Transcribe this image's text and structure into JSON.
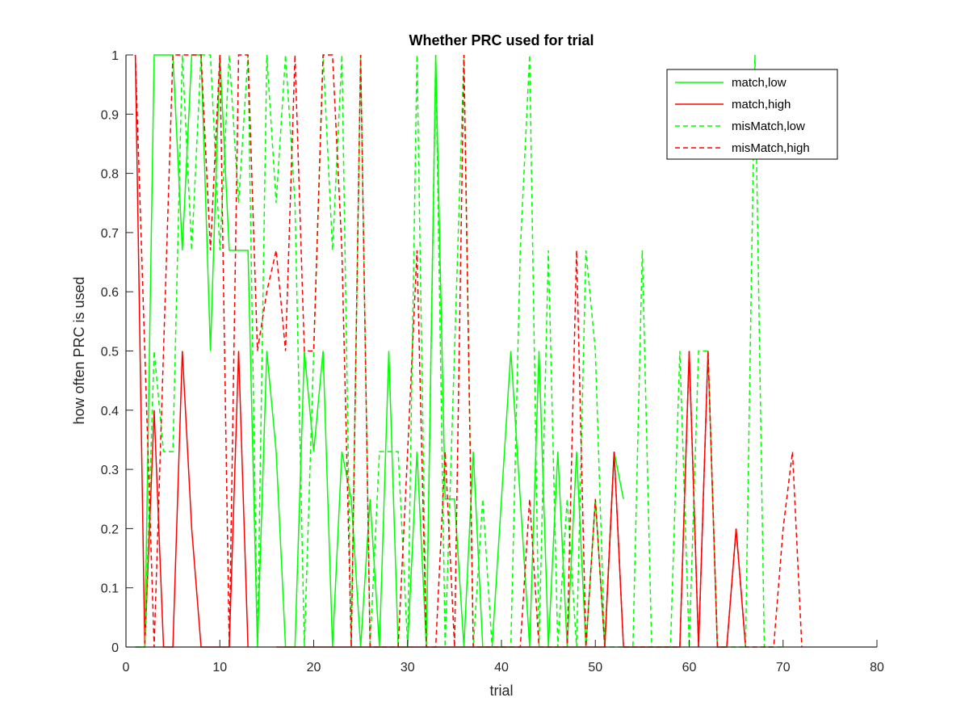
{
  "chart_data": {
    "type": "line",
    "title": "Whether PRC used for trial",
    "xlabel": "trial",
    "ylabel": "how often PRC is used",
    "xlim": [
      0,
      80
    ],
    "ylim": [
      0,
      1
    ],
    "xticks": [
      "0",
      "10",
      "20",
      "30",
      "40",
      "50",
      "60",
      "70",
      "80"
    ],
    "yticks": [
      "0",
      "0.1",
      "0.2",
      "0.3",
      "0.4",
      "0.5",
      "0.6",
      "0.7",
      "0.8",
      "0.9",
      "1"
    ],
    "grid": false,
    "legend_position": "top-right",
    "series": [
      {
        "name": "match,low",
        "color": "#00ff00",
        "style": "solid",
        "x": [
          1,
          2,
          3,
          4,
          5,
          6,
          7,
          8,
          9,
          10,
          11,
          12,
          13,
          14,
          15,
          16,
          17,
          18,
          19,
          20,
          21,
          22,
          23,
          24,
          25,
          26,
          27,
          28,
          29,
          30,
          31,
          32,
          33,
          34,
          35,
          36,
          37,
          38,
          39,
          40,
          41,
          42,
          43,
          44,
          45,
          46,
          47,
          48,
          49,
          50,
          51,
          52,
          53
        ],
        "y": [
          0,
          0,
          1,
          1,
          1,
          0.67,
          1,
          1,
          0.5,
          1,
          0.67,
          0.67,
          0.67,
          0,
          0.5,
          0.33,
          0,
          0,
          0.5,
          0.33,
          0.5,
          0,
          0.33,
          0.25,
          0,
          0.25,
          0,
          0.5,
          0,
          0,
          0.33,
          0,
          1,
          0.25,
          0.25,
          0,
          0.33,
          0,
          0,
          0.25,
          0.5,
          0.25,
          0,
          0.5,
          0,
          0.33,
          0,
          0.33,
          0,
          0.25,
          0,
          0.33,
          0.25
        ]
      },
      {
        "name": "match,high",
        "color": "#ff0000",
        "style": "solid",
        "x": [
          1,
          2,
          3,
          4,
          5,
          6,
          7,
          8,
          9,
          10,
          11,
          12,
          13,
          14,
          15,
          16,
          17,
          18,
          19,
          20,
          21,
          22,
          23,
          24,
          25,
          26,
          27,
          28,
          29,
          30,
          31,
          32,
          33,
          34,
          35,
          36,
          37,
          38,
          39,
          40,
          41,
          42,
          43,
          44,
          45,
          46,
          47,
          48,
          49,
          50,
          51,
          52,
          53,
          54,
          55,
          56,
          57,
          58,
          59,
          60,
          61,
          62,
          63,
          64,
          65,
          66
        ],
        "y": [
          1,
          0,
          0.4,
          0,
          0,
          0.5,
          0.2,
          0,
          0,
          0,
          0,
          0.5,
          0,
          null,
          null,
          0,
          0,
          0,
          0,
          0,
          0,
          0,
          0,
          0,
          0,
          0,
          0,
          0,
          0,
          0,
          0,
          0,
          0,
          0,
          0,
          0,
          0,
          0,
          0,
          0,
          0,
          0,
          0,
          0,
          0,
          0,
          0,
          0,
          0,
          0,
          0,
          0.33,
          0,
          0,
          0,
          0,
          0,
          0,
          0,
          0.5,
          0,
          0.5,
          0,
          0,
          0.2,
          0
        ]
      },
      {
        "name": "misMatch,low",
        "color": "#00ff00",
        "style": "dashed",
        "x": [
          1,
          2,
          3,
          4,
          5,
          6,
          7,
          8,
          9,
          10,
          11,
          12,
          13,
          14,
          15,
          16,
          17,
          18,
          19,
          20,
          21,
          22,
          23,
          24,
          25,
          26,
          27,
          28,
          29,
          30,
          31,
          32,
          33,
          34,
          35,
          36,
          37,
          38,
          39,
          40,
          41,
          42,
          43,
          44,
          45,
          46,
          47,
          48,
          49,
          50,
          51,
          52,
          53,
          54,
          55,
          56,
          57,
          58,
          59,
          60,
          61,
          62,
          63,
          64,
          65,
          66,
          67,
          68,
          69,
          70
        ],
        "y": [
          0,
          0,
          0.5,
          0.33,
          0.33,
          1,
          0.67,
          1,
          1,
          0.67,
          1,
          0.75,
          1,
          0,
          1,
          0.75,
          1,
          0.75,
          0,
          0.5,
          1,
          0.67,
          1,
          0,
          1,
          0,
          0.33,
          0.33,
          0.33,
          0,
          1,
          0,
          1,
          0,
          0.5,
          1,
          0,
          0.25,
          0,
          0,
          0,
          0.67,
          1,
          0,
          0.67,
          0,
          0.25,
          0,
          0.67,
          0.5,
          0,
          0,
          0,
          0,
          0.67,
          0,
          0,
          0,
          0.5,
          0,
          0.5,
          0.5,
          0,
          0,
          0,
          0,
          1,
          0,
          0,
          0
        ]
      },
      {
        "name": "misMatch,high",
        "color": "#ff0000",
        "style": "dashed",
        "x": [
          1,
          2,
          3,
          4,
          5,
          6,
          7,
          8,
          9,
          10,
          11,
          12,
          13,
          14,
          15,
          16,
          17,
          18,
          19,
          20,
          21,
          22,
          23,
          24,
          25,
          26,
          27,
          28,
          29,
          30,
          31,
          32,
          33,
          34,
          35,
          36,
          37,
          38,
          39,
          40,
          41,
          42,
          43,
          44,
          45,
          46,
          47,
          48,
          49,
          50,
          51,
          52,
          53,
          54,
          55,
          56,
          57,
          58,
          59,
          60,
          61,
          62,
          63,
          64,
          65,
          66,
          67,
          68,
          69,
          70,
          71,
          72
        ],
        "y": [
          1,
          0.5,
          0,
          0.5,
          1,
          1,
          1,
          1,
          0.67,
          1,
          0,
          1,
          1,
          0.5,
          0.6,
          0.67,
          0.5,
          1,
          0.5,
          0.5,
          1,
          1,
          0.67,
          0,
          1,
          0,
          0,
          0,
          0,
          0.33,
          0.67,
          0,
          0,
          0.33,
          0,
          1,
          0,
          0,
          0,
          0,
          0,
          0,
          0.25,
          0,
          0,
          0,
          0,
          0.67,
          0,
          0.25,
          0,
          0.33,
          0,
          0,
          0,
          0,
          0,
          0,
          0,
          0.5,
          0,
          0.5,
          0,
          0,
          0.2,
          0,
          0,
          0,
          0,
          0.2,
          0.33,
          0
        ]
      }
    ]
  }
}
